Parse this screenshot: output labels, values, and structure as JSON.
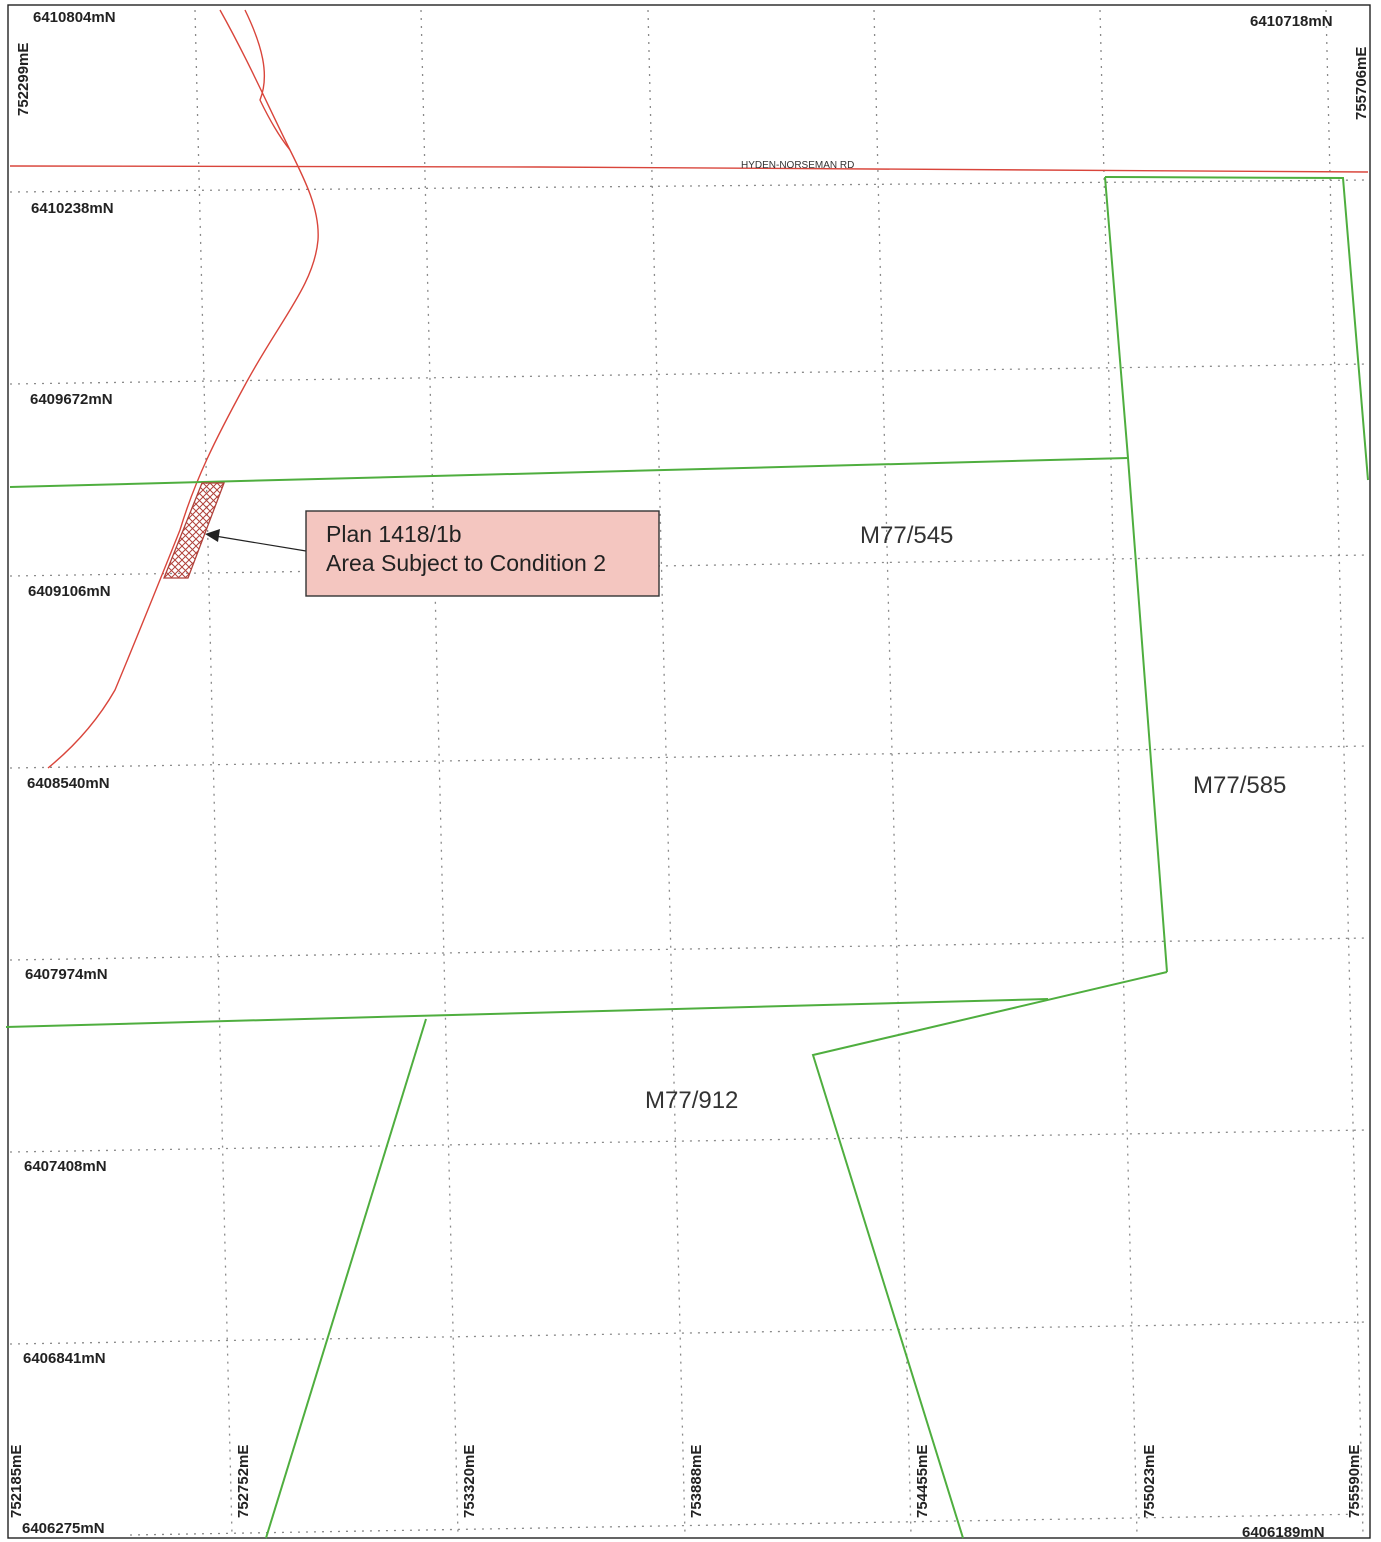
{
  "map": {
    "road_label": "HYDEN-NORSEMAN RD",
    "corner_labels": {
      "top_left_north": "6410804mN",
      "top_left_east": "752299mE",
      "top_right_north": "6410718mN",
      "top_right_east": "755706mE",
      "bottom_right_north": "6406189mN"
    },
    "northing_labels": [
      "6410238mN",
      "6409672mN",
      "6409106mN",
      "6408540mN",
      "6407974mN",
      "6407408mN",
      "6406841mN",
      "6406275mN"
    ],
    "easting_labels": [
      "752185mE",
      "752752mE",
      "753320mE",
      "753888mE",
      "754455mE",
      "755023mE",
      "755590mE"
    ],
    "tenements": [
      "M77/545",
      "M77/585",
      "M77/912"
    ],
    "callout": {
      "line1": "Plan 1418/1b",
      "line2": "Area Subject to Condition 2"
    },
    "colors": {
      "lease_boundary": "#4fae3f",
      "road": "#d9453b",
      "callout_fill": "#f4c6c0",
      "hatch": "#b0413a",
      "grid": "#8a8a8a"
    }
  }
}
